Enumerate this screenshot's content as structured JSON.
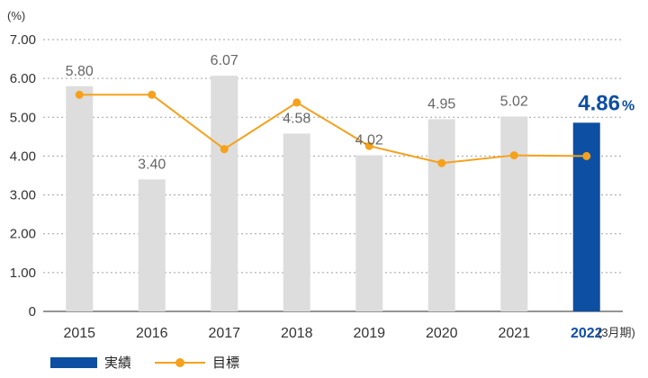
{
  "chart_data": {
    "type": "bar",
    "unit_label": "(%)",
    "x_suffix": "(3月期)",
    "categories": [
      "2015",
      "2016",
      "2017",
      "2018",
      "2019",
      "2020",
      "2021",
      "2022"
    ],
    "ylim": [
      0,
      7
    ],
    "yticks": [
      "0",
      "1.00",
      "2.00",
      "3.00",
      "4.00",
      "5.00",
      "6.00",
      "7.00"
    ],
    "grid": true,
    "series": [
      {
        "name": "実績",
        "type": "bar",
        "values": [
          5.8,
          3.4,
          6.07,
          4.58,
          4.02,
          4.95,
          5.02,
          4.86
        ],
        "labels": [
          "5.80",
          "3.40",
          "6.07",
          "4.58",
          "4.02",
          "4.95",
          "5.02",
          "4.86"
        ]
      },
      {
        "name": "目標",
        "type": "line",
        "values": [
          5.58,
          5.58,
          4.18,
          5.38,
          4.26,
          3.82,
          4.02,
          4.0
        ]
      }
    ],
    "highlight_index": 7,
    "highlight_suffix": "%",
    "colors": {
      "bar": "#dddddd",
      "highlight": "#0d4fa3",
      "line": "#f5a11c",
      "grid": "#a0a0a0"
    },
    "legend_position": "bottom-left"
  }
}
